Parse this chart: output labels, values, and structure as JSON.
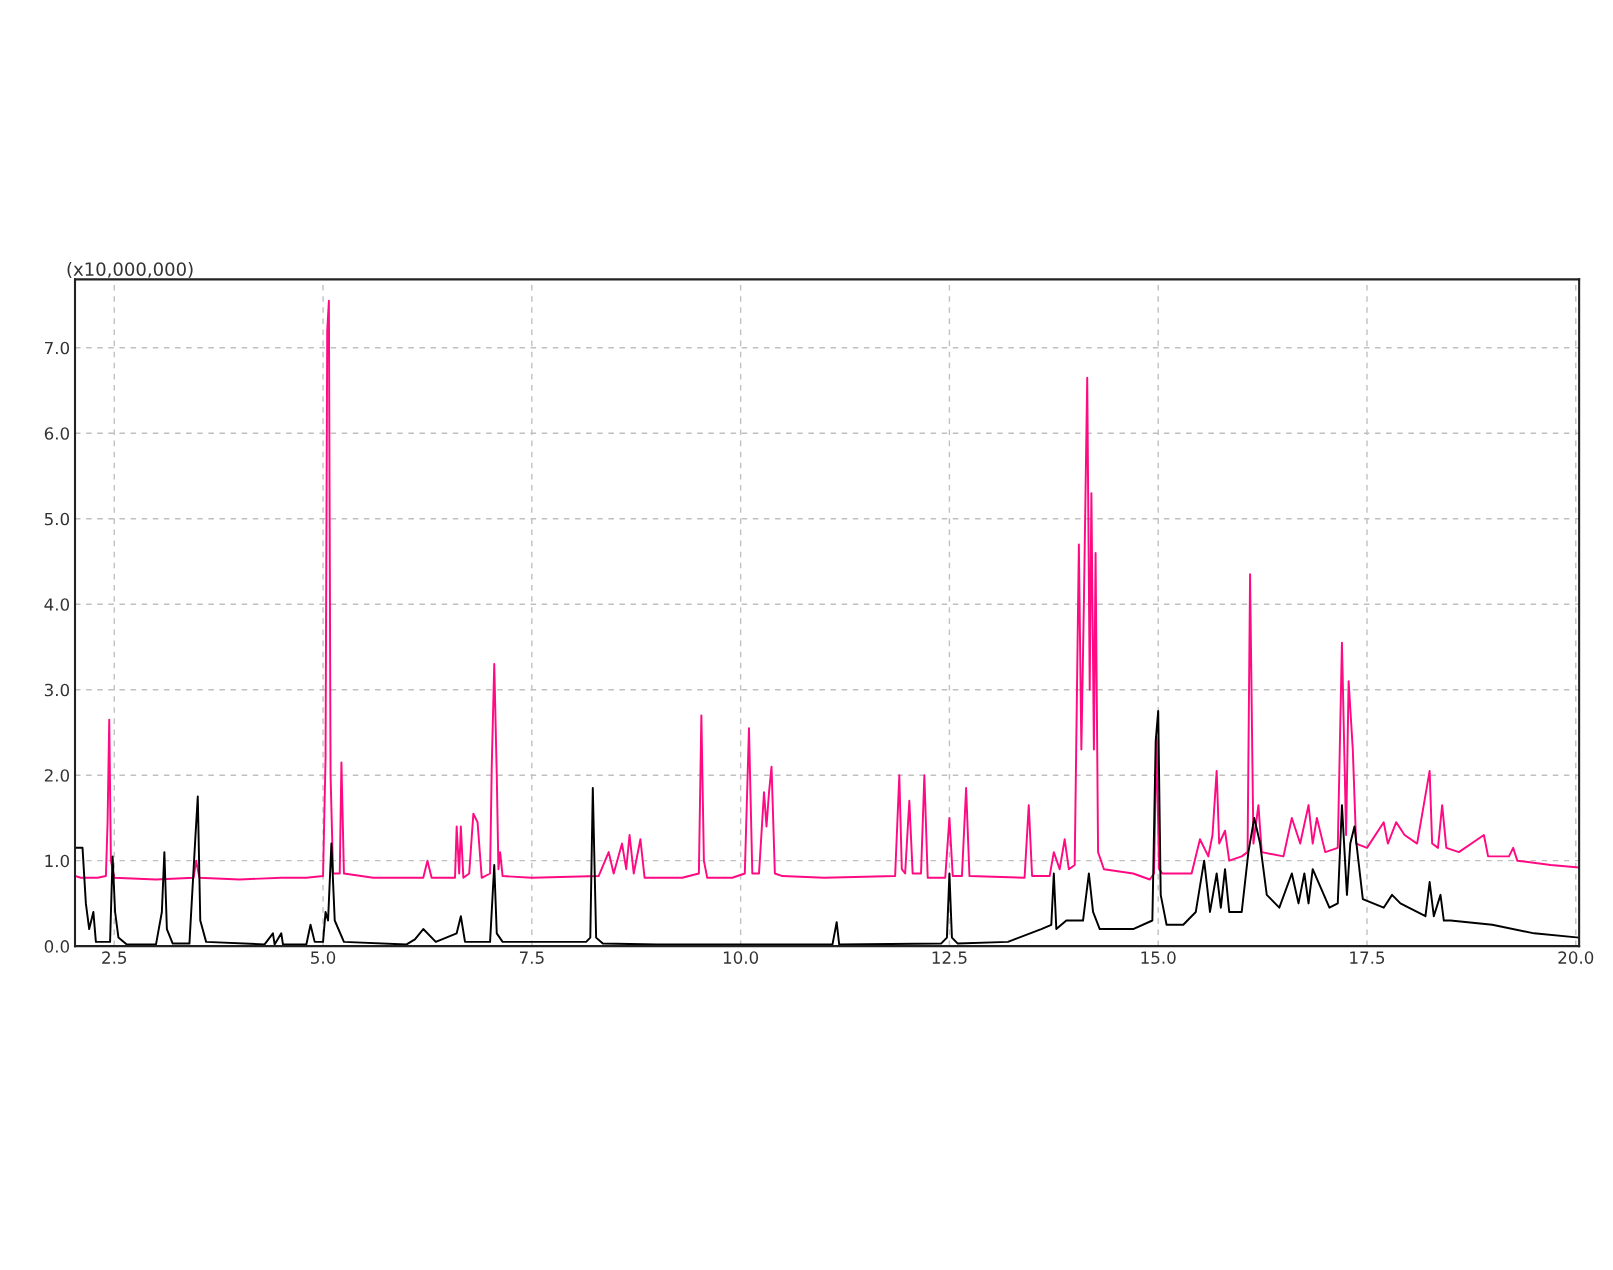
{
  "chart_data": {
    "type": "line",
    "ylabel": "(x10,000,000)",
    "xlim": [
      2.03,
      20.04
    ],
    "ylim": [
      0,
      7.8
    ],
    "xticks": [
      {
        "value": 2.5,
        "label": "2.5"
      },
      {
        "value": 5,
        "label": "5.0"
      },
      {
        "value": 7.5,
        "label": "7.5"
      },
      {
        "value": 10,
        "label": "10.0"
      },
      {
        "value": 12.5,
        "label": "12.5"
      },
      {
        "value": 15,
        "label": "15.0"
      },
      {
        "value": 17.5,
        "label": "17.5"
      },
      {
        "value": 20,
        "label": "20.0"
      }
    ],
    "yticks": [
      {
        "value": 0,
        "label": "0.0"
      },
      {
        "value": 1,
        "label": "1.0"
      },
      {
        "value": 2,
        "label": "2.0"
      },
      {
        "value": 3,
        "label": "3.0"
      },
      {
        "value": 4,
        "label": "4.0"
      },
      {
        "value": 5,
        "label": "5.0"
      },
      {
        "value": 6,
        "label": "6.0"
      },
      {
        "value": 7,
        "label": "7.0"
      }
    ],
    "grid": true,
    "line_style": "solid",
    "marker": "none",
    "series": [
      {
        "color": "#ff0a82",
        "x": [
          2.03,
          2.1,
          2.3,
          2.4,
          2.42,
          2.44,
          2.46,
          2.5,
          3.0,
          3.45,
          3.48,
          3.52,
          4.0,
          4.5,
          4.8,
          5.0,
          5.03,
          5.05,
          5.07,
          5.09,
          5.12,
          5.2,
          5.22,
          5.25,
          5.6,
          6.2,
          6.25,
          6.3,
          6.58,
          6.6,
          6.63,
          6.65,
          6.68,
          6.75,
          6.8,
          6.85,
          6.9,
          7.0,
          7.02,
          7.05,
          7.08,
          7.1,
          7.12,
          7.15,
          7.5,
          8.3,
          8.42,
          8.48,
          8.58,
          8.63,
          8.67,
          8.72,
          8.8,
          8.85,
          9.3,
          9.5,
          9.53,
          9.56,
          9.6,
          9.9,
          10.05,
          10.1,
          10.14,
          10.22,
          10.28,
          10.31,
          10.34,
          10.37,
          10.41,
          10.5,
          11.0,
          11.85,
          11.9,
          11.93,
          11.97,
          12.02,
          12.06,
          12.16,
          12.2,
          12.24,
          12.45,
          12.5,
          12.54,
          12.65,
          12.7,
          12.74,
          13.4,
          13.45,
          13.49,
          13.7,
          13.75,
          13.82,
          13.88,
          13.93,
          14.0,
          14.05,
          14.08,
          14.11,
          14.15,
          14.18,
          14.2,
          14.23,
          14.25,
          14.28,
          14.35,
          14.7,
          14.9,
          14.95,
          14.98,
          15.01,
          15.05,
          15.4,
          15.5,
          15.6,
          15.65,
          15.7,
          15.73,
          15.8,
          15.85,
          16.0,
          16.07,
          16.1,
          16.14,
          16.2,
          16.24,
          16.5,
          16.6,
          16.7,
          16.8,
          16.85,
          16.9,
          17.0,
          17.15,
          17.2,
          17.25,
          17.28,
          17.33,
          17.37,
          17.5,
          17.7,
          17.75,
          17.85,
          17.95,
          18.1,
          18.25,
          18.28,
          18.35,
          18.4,
          18.45,
          18.6,
          18.9,
          18.95,
          19.2,
          19.25,
          19.3,
          19.7,
          20.04
        ],
        "values": [
          0.82,
          0.8,
          0.8,
          0.82,
          1.45,
          2.65,
          1.0,
          0.8,
          0.78,
          0.8,
          1.0,
          0.8,
          0.78,
          0.8,
          0.8,
          0.82,
          2.2,
          7.2,
          7.55,
          2.0,
          0.85,
          0.85,
          2.15,
          0.85,
          0.8,
          0.8,
          1.0,
          0.8,
          0.8,
          1.4,
          0.85,
          1.4,
          0.8,
          0.85,
          1.55,
          1.45,
          0.8,
          0.85,
          2.1,
          3.3,
          2.0,
          0.9,
          1.1,
          0.82,
          0.8,
          0.82,
          1.1,
          0.85,
          1.2,
          0.9,
          1.3,
          0.85,
          1.25,
          0.8,
          0.8,
          0.85,
          2.7,
          1.0,
          0.8,
          0.8,
          0.85,
          2.55,
          0.85,
          0.85,
          1.8,
          1.4,
          1.8,
          2.1,
          0.85,
          0.82,
          0.8,
          0.82,
          2.0,
          0.9,
          0.85,
          1.7,
          0.85,
          0.85,
          2.0,
          0.8,
          0.8,
          1.5,
          0.82,
          0.82,
          1.85,
          0.82,
          0.8,
          1.65,
          0.82,
          0.82,
          1.1,
          0.9,
          1.25,
          0.9,
          0.95,
          4.7,
          2.3,
          4.0,
          6.65,
          3.0,
          5.3,
          2.3,
          4.6,
          1.1,
          0.9,
          0.85,
          0.78,
          0.85,
          2.45,
          0.9,
          0.85,
          0.85,
          1.25,
          1.05,
          1.3,
          2.05,
          1.2,
          1.35,
          1.0,
          1.05,
          1.1,
          4.35,
          1.2,
          1.65,
          1.1,
          1.05,
          1.5,
          1.2,
          1.65,
          1.2,
          1.5,
          1.1,
          1.15,
          3.55,
          1.3,
          3.1,
          2.3,
          1.2,
          1.15,
          1.45,
          1.2,
          1.45,
          1.3,
          1.2,
          2.05,
          1.2,
          1.15,
          1.65,
          1.15,
          1.1,
          1.3,
          1.05,
          1.05,
          1.15,
          1.0,
          0.95,
          0.92
        ]
      },
      {
        "color": "#000000",
        "x": [
          2.03,
          2.05,
          2.12,
          2.16,
          2.2,
          2.25,
          2.28,
          2.32,
          2.45,
          2.48,
          2.51,
          2.55,
          2.65,
          3.0,
          3.07,
          3.1,
          3.13,
          3.2,
          3.4,
          3.47,
          3.5,
          3.53,
          3.6,
          4.3,
          4.4,
          4.42,
          4.5,
          4.52,
          4.8,
          4.85,
          4.9,
          5.0,
          5.03,
          5.06,
          5.1,
          5.14,
          5.25,
          6.0,
          6.1,
          6.2,
          6.35,
          6.6,
          6.65,
          6.7,
          7.0,
          7.05,
          7.08,
          7.15,
          8.15,
          8.2,
          8.23,
          8.27,
          8.35,
          9.0,
          11.1,
          11.15,
          11.18,
          12.4,
          12.47,
          12.5,
          12.53,
          12.6,
          13.2,
          13.6,
          13.72,
          13.75,
          13.78,
          13.9,
          14.1,
          14.17,
          14.22,
          14.3,
          14.7,
          14.93,
          14.97,
          15.0,
          15.03,
          15.1,
          15.3,
          15.45,
          15.55,
          15.62,
          15.7,
          15.75,
          15.8,
          15.85,
          16.0,
          16.08,
          16.15,
          16.22,
          16.3,
          16.45,
          16.6,
          16.68,
          16.75,
          16.8,
          16.85,
          17.05,
          17.15,
          17.2,
          17.26,
          17.3,
          17.35,
          17.45,
          17.7,
          17.8,
          17.9,
          18.2,
          18.25,
          18.3,
          18.38,
          18.42,
          18.5,
          19.0,
          19.5,
          20.04
        ],
        "values": [
          1.15,
          1.15,
          1.15,
          0.5,
          0.2,
          0.4,
          0.05,
          0.05,
          0.05,
          1.05,
          0.4,
          0.1,
          0.02,
          0.02,
          0.4,
          1.1,
          0.2,
          0.03,
          0.03,
          1.25,
          1.75,
          0.3,
          0.05,
          0.02,
          0.15,
          0.02,
          0.15,
          0.02,
          0.02,
          0.25,
          0.05,
          0.05,
          0.4,
          0.3,
          1.2,
          0.3,
          0.05,
          0.02,
          0.08,
          0.2,
          0.05,
          0.15,
          0.35,
          0.05,
          0.05,
          0.95,
          0.15,
          0.05,
          0.05,
          0.1,
          1.85,
          0.1,
          0.03,
          0.02,
          0.02,
          0.28,
          0.02,
          0.03,
          0.1,
          0.85,
          0.1,
          0.03,
          0.05,
          0.2,
          0.25,
          0.85,
          0.2,
          0.3,
          0.3,
          0.85,
          0.4,
          0.2,
          0.2,
          0.3,
          2.4,
          2.75,
          0.6,
          0.25,
          0.25,
          0.4,
          1.0,
          0.4,
          0.85,
          0.45,
          0.9,
          0.4,
          0.4,
          1.1,
          1.5,
          1.2,
          0.6,
          0.45,
          0.85,
          0.5,
          0.85,
          0.5,
          0.9,
          0.45,
          0.5,
          1.65,
          0.6,
          1.2,
          1.4,
          0.55,
          0.45,
          0.6,
          0.5,
          0.35,
          0.75,
          0.35,
          0.6,
          0.3,
          0.3,
          0.25,
          0.15,
          0.1
        ]
      }
    ]
  }
}
